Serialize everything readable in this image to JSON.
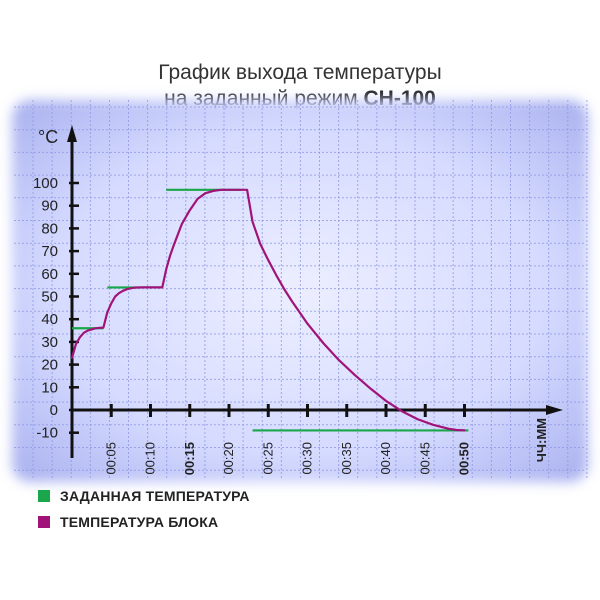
{
  "title": {
    "line1": "График выхода температуры",
    "line2_prefix": "на заданный режим ",
    "line2_bold": "СН-100"
  },
  "legend": [
    {
      "label": "ЗАДАННАЯ ТЕМПЕРАТУРА",
      "color": "#1aa64a"
    },
    {
      "label": "ТЕМПЕРАТУРА БЛОКА",
      "color": "#a0147a"
    }
  ],
  "colors": {
    "background_center": "#e9ebff",
    "background_edge": "#aab2f2",
    "grid": "#8f98e6",
    "axis": "#111111",
    "setpoint": "#1aa64a",
    "block": "#a0147a"
  },
  "chart_data": {
    "type": "line",
    "title": "График выхода температуры на заданный режим СН-100",
    "ylabel": "°C",
    "xlabel": "ЧЧ:ММ",
    "ylim": [
      -10,
      100
    ],
    "xlim": [
      0,
      60
    ],
    "grid": true,
    "y_ticks": [
      -10,
      0,
      10,
      20,
      30,
      40,
      50,
      60,
      70,
      80,
      90,
      100
    ],
    "x_ticks": [
      {
        "value": 5,
        "label": "00:05",
        "bold": false
      },
      {
        "value": 10,
        "label": "00:10",
        "bold": false
      },
      {
        "value": 15,
        "label": "00:15",
        "bold": true
      },
      {
        "value": 20,
        "label": "00:20",
        "bold": false
      },
      {
        "value": 25,
        "label": "00:25",
        "bold": false
      },
      {
        "value": 30,
        "label": "00:30",
        "bold": false
      },
      {
        "value": 35,
        "label": "00:35",
        "bold": false
      },
      {
        "value": 40,
        "label": "00:40",
        "bold": false
      },
      {
        "value": 45,
        "label": "00:45",
        "bold": false
      },
      {
        "value": 50,
        "label": "00:50",
        "bold": true
      }
    ],
    "setpoints": [
      {
        "x": [
          0,
          4
        ],
        "y": 36
      },
      {
        "x": [
          4.5,
          11.5
        ],
        "y": 54
      },
      {
        "x": [
          12,
          21.5
        ],
        "y": 97
      },
      {
        "x": [
          23,
          50.5
        ],
        "y": -9
      }
    ],
    "series": [
      {
        "name": "ТЕМПЕРАТУРА БЛОКА",
        "x": [
          0,
          0.5,
          1,
          1.5,
          2,
          2.5,
          3,
          3.5,
          4,
          4.5,
          5,
          5.5,
          6,
          6.5,
          7,
          7.5,
          8,
          9,
          10,
          11,
          11.5,
          12,
          12.5,
          13,
          14,
          15,
          16,
          17,
          18,
          19,
          20,
          21,
          22,
          22.3,
          23,
          24,
          25,
          26,
          27,
          28,
          30,
          32,
          34,
          36,
          38,
          40,
          42,
          44,
          46,
          48,
          49,
          50
        ],
        "values": [
          23,
          29,
          32,
          34,
          35,
          35.5,
          36,
          36.2,
          36.3,
          43,
          47,
          50,
          51.5,
          52.5,
          53.2,
          53.6,
          53.9,
          54,
          54,
          54,
          54,
          62,
          68,
          73,
          82,
          88,
          93,
          95.5,
          96.5,
          97,
          97,
          97,
          97,
          97,
          83,
          73,
          66,
          59.5,
          53.5,
          48,
          38,
          29.5,
          22,
          15.5,
          9.5,
          4,
          -0.5,
          -4,
          -6.5,
          -8.3,
          -8.8,
          -9
        ]
      }
    ]
  }
}
